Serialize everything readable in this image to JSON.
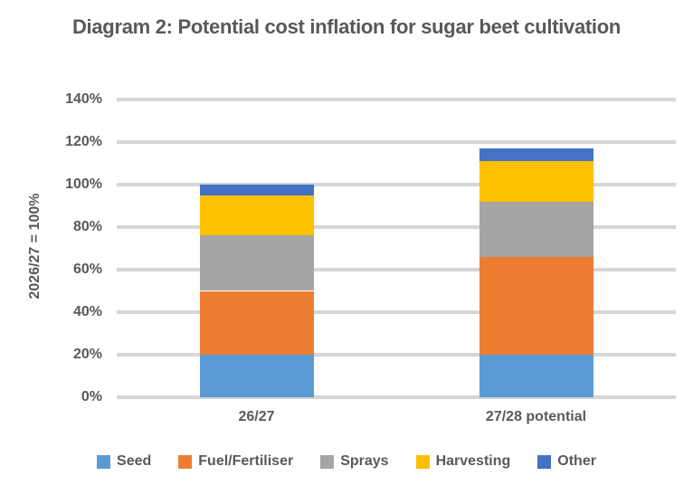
{
  "page": {
    "background": "#FFFFFF",
    "text_color": "#595959",
    "gridline_color": "#D6D6D6"
  },
  "chart_data": {
    "type": "bar",
    "stacked": true,
    "title": "Diagram 2: Potential cost inflation for sugar beet cultivation",
    "xlabel": "",
    "ylabel": "2026/27 = 100%",
    "categories": [
      "26/27",
      "27/28 potential"
    ],
    "series": [
      {
        "name": "Seed",
        "color": "#5B9BD5",
        "values": [
          20,
          20
        ]
      },
      {
        "name": "Fuel/Fertiliser",
        "color": "#ED7D31",
        "values": [
          30,
          46
        ]
      },
      {
        "name": "Sprays",
        "color": "#A5A5A5",
        "values": [
          26,
          26
        ]
      },
      {
        "name": "Harvesting",
        "color": "#FFC000",
        "values": [
          19,
          19
        ]
      },
      {
        "name": "Other",
        "color": "#4472C4",
        "values": [
          5,
          6
        ]
      }
    ],
    "stack_totals": [
      100,
      117
    ],
    "ylim": [
      0,
      140
    ],
    "ytick_step": 20,
    "ytick_labels": [
      "0%",
      "20%",
      "40%",
      "60%",
      "80%",
      "100%",
      "120%",
      "140%"
    ],
    "grid": true,
    "legend_position": "bottom"
  }
}
